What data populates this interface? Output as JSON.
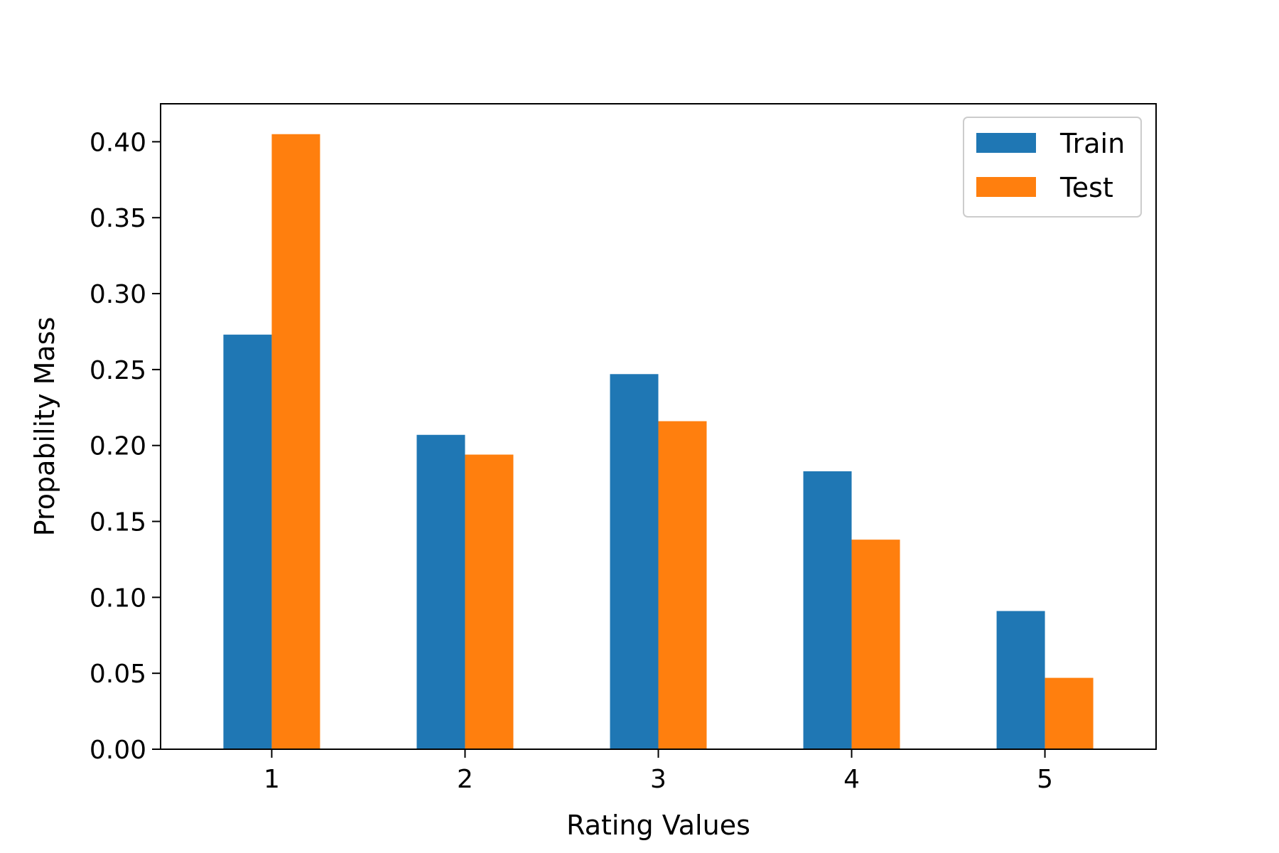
{
  "chart_data": {
    "type": "bar",
    "title": "",
    "xlabel": "Rating Values",
    "ylabel": "Propability Mass",
    "categories": [
      "1",
      "2",
      "3",
      "4",
      "5"
    ],
    "series": [
      {
        "name": "Train",
        "color": "#1f77b4",
        "values": [
          0.273,
          0.207,
          0.247,
          0.183,
          0.091
        ]
      },
      {
        "name": "Test",
        "color": "#ff7f0e",
        "values": [
          0.405,
          0.194,
          0.216,
          0.138,
          0.047
        ]
      }
    ],
    "ylim": [
      0,
      0.425
    ],
    "yticks": [
      "0.00",
      "0.05",
      "0.10",
      "0.15",
      "0.20",
      "0.25",
      "0.30",
      "0.35",
      "0.40"
    ],
    "grid": false,
    "legend_position": "top-right"
  }
}
